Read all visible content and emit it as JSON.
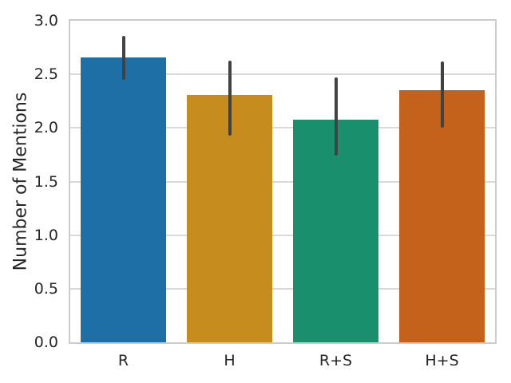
{
  "chart_data": {
    "type": "bar",
    "title": "",
    "xlabel": "",
    "ylabel": "Number of Mentions",
    "categories": [
      "R",
      "H",
      "R+S",
      "H+S"
    ],
    "values": [
      2.66,
      2.31,
      2.08,
      2.35
    ],
    "error_low": [
      2.45,
      1.93,
      1.74,
      2.0
    ],
    "error_high": [
      2.86,
      2.63,
      2.47,
      2.62
    ],
    "bar_colors": [
      "#1d6fa5",
      "#c68c1e",
      "#1a8f6e",
      "#c4621b"
    ],
    "error_bar_color": "#424242",
    "ylim": [
      0.0,
      3.0
    ],
    "yticks": [
      "0.0",
      "0.5",
      "1.0",
      "1.5",
      "2.0",
      "2.5",
      "3.0"
    ],
    "grid": "horizontal",
    "grid_color": "#d9d9d9",
    "spine_color": "#cccccc",
    "text_color": "#262626",
    "legend": "none",
    "bar_width_fraction": 0.8
  }
}
